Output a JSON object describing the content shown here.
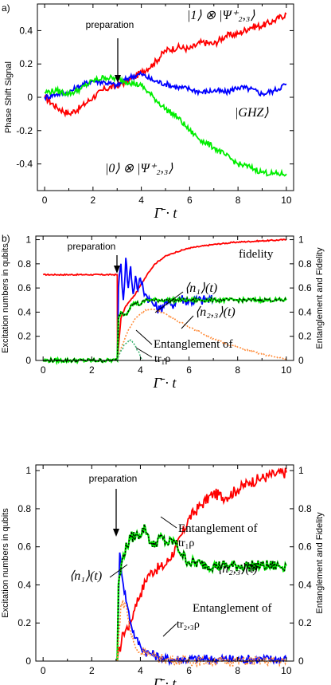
{
  "figure": {
    "panel_a_label": "a)",
    "panel_b_label": "b)",
    "xlabel": "Γ̄ · t"
  },
  "colors": {
    "red": "#ff0000",
    "blue": "#0000ff",
    "green": "#00ee00",
    "orange": "#ff8c3a",
    "teal": "#3cb371",
    "black": "#000000"
  },
  "chart_data": [
    {
      "type": "line",
      "panel": "a)",
      "ylabel": "Phase Shift Signal",
      "xlabel": "Γ̄ · t",
      "xlim": [
        -0.3,
        10.3
      ],
      "ylim": [
        -0.56,
        0.56
      ],
      "xticks": [
        "0",
        "2",
        "4",
        "6",
        "8",
        "10"
      ],
      "yticks": [
        "-0.4",
        "-0.2",
        "0",
        "0.2",
        "0.4"
      ],
      "annotations": {
        "preparation": "preparation",
        "red_label": "|1⟩ ⊗ |Ψ⁺₂,₃⟩",
        "blue_label": "|GHZ⟩",
        "green_label": "|0⟩ ⊗ |Ψ⁺₂,₃⟩"
      },
      "series": [
        {
          "color": "red",
          "x": [
            0,
            0.5,
            1,
            1.5,
            2,
            2.5,
            3,
            3.5,
            4,
            4.5,
            5,
            5.5,
            6,
            6.5,
            7,
            7.5,
            8,
            8.5,
            9,
            9.5,
            10
          ],
          "y": [
            0,
            -0.06,
            -0.1,
            -0.06,
            0,
            0.05,
            0.07,
            0.1,
            0.15,
            0.2,
            0.28,
            0.3,
            0.29,
            0.33,
            0.32,
            0.37,
            0.38,
            0.42,
            0.43,
            0.46,
            0.5
          ]
        },
        {
          "color": "blue",
          "x": [
            0,
            0.5,
            1,
            1.5,
            2,
            2.5,
            3,
            3.5,
            4,
            4.5,
            5,
            5.5,
            6,
            6.5,
            7,
            7.5,
            8,
            8.5,
            9,
            9.5,
            10
          ],
          "y": [
            0,
            0.02,
            0.03,
            0.07,
            0.1,
            0.09,
            0.07,
            0.12,
            0.14,
            0.1,
            0.08,
            0.06,
            0.05,
            0.03,
            0.04,
            0.03,
            0.06,
            0.05,
            0.02,
            0.04,
            0.08
          ]
        },
        {
          "color": "green",
          "x": [
            0,
            0.5,
            1,
            1.5,
            2,
            2.5,
            3,
            3.5,
            4,
            4.5,
            5,
            5.5,
            6,
            6.5,
            7,
            7.5,
            8,
            8.5,
            9,
            9.5,
            10
          ],
          "y": [
            0.03,
            0.04,
            0.02,
            0.05,
            0.1,
            0.12,
            0.11,
            0.09,
            0.07,
            0.0,
            -0.07,
            -0.12,
            -0.2,
            -0.26,
            -0.3,
            -0.35,
            -0.4,
            -0.42,
            -0.45,
            -0.46,
            -0.46
          ]
        }
      ]
    },
    {
      "type": "line",
      "panel": "b) top",
      "ylabel": "Excitation numbers in qubits",
      "y2label": "Entanglement and Fidelity",
      "xlabel": "Γ̄ · t",
      "xlim": [
        -0.3,
        10.3
      ],
      "ylim": [
        0,
        1.03
      ],
      "xticks": [
        "0",
        "2",
        "4",
        "6",
        "8",
        "10"
      ],
      "yticks": [
        "0",
        "0.2",
        "0.4",
        "0.6",
        "0.8",
        "1"
      ],
      "annotations": {
        "preparation": "preparation",
        "fidelity": "fidelity",
        "n1": "⟨n₁⟩(t)",
        "n23": "⟨n₂,₃⟩(t)",
        "ent_line1": "Entanglement of",
        "ent_line2": "tr₁ρ"
      },
      "series": [
        {
          "name": "fidelity",
          "color": "red",
          "x": [
            0,
            3.05,
            3.06,
            3.2,
            3.4,
            3.6,
            3.8,
            4,
            4.3,
            4.6,
            5,
            5.5,
            6,
            7,
            8,
            9,
            10
          ],
          "y": [
            0.71,
            0.71,
            0.02,
            0.35,
            0.45,
            0.5,
            0.55,
            0.62,
            0.72,
            0.8,
            0.86,
            0.9,
            0.93,
            0.96,
            0.98,
            0.99,
            1.0
          ]
        },
        {
          "name": "⟨n₁⟩(t)",
          "color": "blue",
          "x": [
            3.05,
            3.1,
            3.2,
            3.3,
            3.4,
            3.5,
            3.6,
            3.7,
            3.8,
            3.9,
            4,
            4.2,
            4.4,
            4.6,
            4.8,
            5,
            5.3,
            5.6,
            6,
            6.5,
            7
          ],
          "y": [
            0,
            0.6,
            0.8,
            0.5,
            0.85,
            0.6,
            0.78,
            0.55,
            0.7,
            0.58,
            0.68,
            0.55,
            0.5,
            0.45,
            0.42,
            0.48,
            0.46,
            0.52,
            0.49,
            0.5,
            0.5
          ]
        },
        {
          "name": "⟨n₂,₃⟩(t)",
          "color": "black",
          "dashed": true,
          "x": [
            0,
            3.05,
            3.1,
            3.2,
            3.4,
            3.6,
            3.8,
            4,
            4.2,
            4.5,
            5,
            5.5,
            6,
            7,
            8,
            9,
            10
          ],
          "y": [
            0,
            0,
            0.35,
            0.4,
            0.38,
            0.45,
            0.48,
            0.46,
            0.5,
            0.5,
            0.5,
            0.5,
            0.5,
            0.5,
            0.5,
            0.5,
            0.5
          ]
        },
        {
          "name": "Entanglement of tr₁ρ",
          "color": "orange",
          "dotted": true,
          "x": [
            3.05,
            3.2,
            3.5,
            3.8,
            4.2,
            4.6,
            5,
            5.5,
            6,
            6.5,
            7,
            7.5,
            8,
            8.5,
            9,
            9.5,
            10
          ],
          "y": [
            0,
            0.1,
            0.25,
            0.35,
            0.42,
            0.42,
            0.39,
            0.33,
            0.28,
            0.23,
            0.18,
            0.14,
            0.11,
            0.08,
            0.05,
            0.03,
            0.01
          ]
        },
        {
          "name": "teal",
          "color": "teal",
          "dotted": true,
          "x": [
            3.05,
            3.2,
            3.4,
            3.6,
            3.8,
            3.9,
            4,
            4.1
          ],
          "y": [
            0,
            0.08,
            0.14,
            0.17,
            0.12,
            0.08,
            0.03,
            0
          ]
        }
      ]
    },
    {
      "type": "line",
      "panel": "b) bottom",
      "ylabel": "Excitation numbers in qubits",
      "y2label": "Entanglement and Fidelity",
      "xlabel": "Γ̄ · t",
      "xlim": [
        -0.3,
        10.3
      ],
      "ylim": [
        0,
        1.03
      ],
      "xticks": [
        "0",
        "2",
        "4",
        "6",
        "8",
        "10"
      ],
      "yticks": [
        "0",
        "0.2",
        "0.4",
        "0.6",
        "0.8",
        "1"
      ],
      "annotations": {
        "preparation": "preparation",
        "ent1_line1": "Entanglement of",
        "ent1_line2": "tr₁ρ",
        "n1": "⟨n₁⟩(t)",
        "n23": "⟨n₂,₃⟩(t)",
        "ent23_line1": "Entanglement of",
        "ent23_line2": "tr₂,₃ρ"
      },
      "series": [
        {
          "name": "Entanglement of tr₁ρ",
          "color": "red",
          "x": [
            3.05,
            3.3,
            3.6,
            3.8,
            4,
            4.3,
            4.6,
            5,
            5.5,
            6,
            6.5,
            7,
            7.5,
            8,
            8.5,
            9,
            9.5,
            10
          ],
          "y": [
            0,
            0.15,
            0.2,
            0.3,
            0.35,
            0.45,
            0.48,
            0.5,
            0.6,
            0.75,
            0.82,
            0.88,
            0.86,
            0.9,
            0.94,
            0.96,
            0.98,
            0.99
          ]
        },
        {
          "name": "⟨n₁⟩(t)",
          "color": "blue",
          "x": [
            3.05,
            3.15,
            3.3,
            3.45,
            3.6,
            3.8,
            4,
            4.2,
            4.4,
            4.6,
            4.8,
            5,
            5.5,
            6,
            7,
            8,
            9,
            10
          ],
          "y": [
            0,
            0.57,
            0.4,
            0.3,
            0.2,
            0.12,
            0.08,
            0.05,
            0.04,
            0.03,
            0.02,
            0.01,
            0.01,
            0.01,
            0.01,
            0.01,
            0.01,
            0.01
          ]
        },
        {
          "name": "⟨n₂,₃⟩(t)",
          "color": "black",
          "dashed": true,
          "x": [
            3.05,
            3.1,
            3.3,
            3.6,
            3.9,
            4.2,
            4.5,
            4.8,
            5.1,
            5.4,
            5.7,
            6,
            6.5,
            7,
            8,
            9,
            10
          ],
          "y": [
            0,
            0.4,
            0.56,
            0.65,
            0.66,
            0.7,
            0.6,
            0.65,
            0.62,
            0.63,
            0.56,
            0.52,
            0.51,
            0.5,
            0.5,
            0.5,
            0.5
          ]
        },
        {
          "name": "Entanglement of tr₂,₃ρ",
          "color": "orange",
          "dotted": true,
          "x": [
            3.05,
            3.2,
            3.4,
            3.6,
            3.8,
            4,
            4.2,
            4.4,
            4.6,
            5,
            6,
            7,
            8,
            9,
            10
          ],
          "y": [
            0,
            0.3,
            0.3,
            0.15,
            0.07,
            0.04,
            0.06,
            0.03,
            0.02,
            0.01,
            0,
            0,
            0,
            0,
            0
          ]
        }
      ]
    }
  ]
}
